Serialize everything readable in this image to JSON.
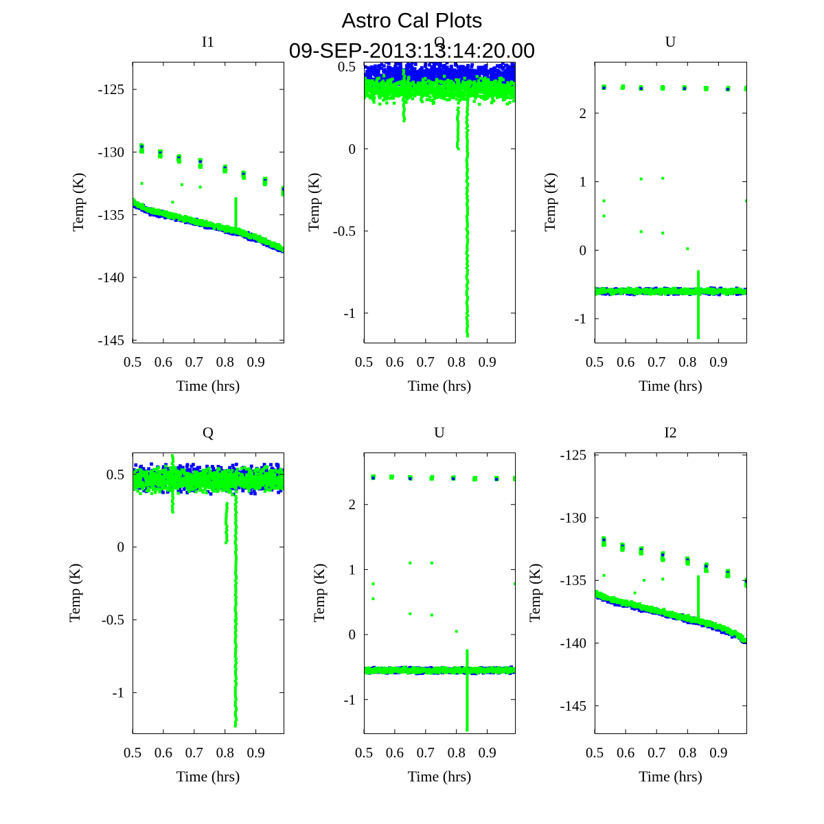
{
  "figure": {
    "title_line1": "Astro Cal Plots",
    "title_line2": "09-SEP-2013:13:14:20.00"
  },
  "colors": {
    "series_a": "#0000ff",
    "series_b": "#00ff00"
  },
  "chart_data": [
    {
      "type": "scatter",
      "title": "I1",
      "xlabel": "Time (hrs)",
      "ylabel": "Temp (K)",
      "xlim": [
        0.5,
        0.99
      ],
      "ylim": [
        -145.2,
        -122.8
      ],
      "xticks": [
        0.5,
        0.6,
        0.7,
        0.8,
        0.9
      ],
      "xtick_labels": [
        "0.5",
        "0.6",
        "0.7",
        "0.8",
        "0.9"
      ],
      "yticks": [
        -125,
        -130,
        -135,
        -140,
        -145
      ],
      "ytick_labels": [
        "-125",
        "-130",
        "-135",
        "-140",
        "-145"
      ],
      "series": [
        {
          "color": "#0000ff",
          "x": [
            0.5,
            0.55,
            0.6,
            0.65,
            0.7,
            0.75,
            0.8,
            0.85,
            0.9,
            0.95,
            0.99
          ],
          "y": [
            -134.1,
            -134.7,
            -135.0,
            -135.3,
            -135.6,
            -135.9,
            -136.2,
            -136.5,
            -136.9,
            -137.4,
            -137.9
          ]
        },
        {
          "color": "#00ff00",
          "x": [
            0.5,
            0.55,
            0.6,
            0.65,
            0.7,
            0.75,
            0.8,
            0.85,
            0.9,
            0.95,
            0.99
          ],
          "y": [
            -134.0,
            -134.6,
            -134.9,
            -135.2,
            -135.5,
            -135.8,
            -136.1,
            -136.4,
            -136.8,
            -137.3,
            -137.8
          ]
        },
        {
          "color": "#00ff00",
          "x": [
            0.53,
            0.53,
            0.59,
            0.59,
            0.65,
            0.65,
            0.72,
            0.72,
            0.8,
            0.8,
            0.86,
            0.86,
            0.93,
            0.93,
            0.99,
            0.99
          ],
          "y": [
            -129.5,
            -129.9,
            -130.0,
            -130.3,
            -130.4,
            -130.7,
            -130.7,
            -131.1,
            -131.2,
            -131.5,
            -131.7,
            -132.0,
            -132.2,
            -132.5,
            -132.9,
            -133.3
          ]
        },
        {
          "color": "#00ff00",
          "x": [
            0.53,
            0.63,
            0.66,
            0.72,
            0.835
          ],
          "y": [
            -132.5,
            -134.0,
            -132.6,
            -132.8,
            -133.9
          ]
        }
      ]
    },
    {
      "type": "scatter",
      "title": "Q",
      "xlabel": "Time (hrs)",
      "ylabel": "Temp (K)",
      "xlim": [
        0.5,
        0.99
      ],
      "ylim": [
        -1.18,
        0.53
      ],
      "xticks": [
        0.5,
        0.6,
        0.7,
        0.8,
        0.9
      ],
      "xtick_labels": [
        "0.5",
        "0.6",
        "0.7",
        "0.8",
        "0.9"
      ],
      "yticks": [
        0.5,
        0,
        -0.5,
        -1
      ],
      "ytick_labels": [
        "0.5",
        "0",
        "-0.5",
        "-1"
      ],
      "series": [
        {
          "color": "#0000ff",
          "x": [
            0.5,
            0.6,
            0.7,
            0.8,
            0.9,
            0.99
          ],
          "y": [
            0.44,
            0.44,
            0.44,
            0.44,
            0.44,
            0.44
          ]
        },
        {
          "color": "#00ff00",
          "x": [
            0.5,
            0.6,
            0.7,
            0.8,
            0.9,
            0.99
          ],
          "y": [
            0.36,
            0.36,
            0.36,
            0.36,
            0.36,
            0.36
          ]
        },
        {
          "color": "#00ff00",
          "x": [
            0.63,
            0.63,
            0.805,
            0.805,
            0.835,
            0.835,
            0.835
          ],
          "y": [
            0.48,
            0.17,
            0.25,
            0.0,
            0.3,
            -0.5,
            -1.14
          ]
        }
      ]
    },
    {
      "type": "scatter",
      "title": "U",
      "xlabel": "Time (hrs)",
      "ylabel": "Temp (K)",
      "xlim": [
        0.5,
        0.99
      ],
      "ylim": [
        -1.35,
        2.75
      ],
      "xticks": [
        0.5,
        0.6,
        0.7,
        0.8,
        0.9
      ],
      "xtick_labels": [
        "0.5",
        "0.6",
        "0.7",
        "0.8",
        "0.9"
      ],
      "yticks": [
        2,
        1,
        0,
        -1
      ],
      "ytick_labels": [
        "2",
        "1",
        "0",
        "-1"
      ],
      "series": [
        {
          "color": "#0000ff",
          "x": [
            0.5,
            0.6,
            0.7,
            0.8,
            0.9,
            0.99
          ],
          "y": [
            -0.6,
            -0.6,
            -0.6,
            -0.6,
            -0.6,
            -0.6
          ]
        },
        {
          "color": "#00ff00",
          "x": [
            0.5,
            0.6,
            0.7,
            0.8,
            0.9,
            0.99
          ],
          "y": [
            -0.6,
            -0.6,
            -0.6,
            -0.6,
            -0.6,
            -0.6
          ]
        },
        {
          "color": "#00ff00",
          "x": [
            0.53,
            0.59,
            0.65,
            0.72,
            0.79,
            0.86,
            0.93,
            0.99
          ],
          "y": [
            2.38,
            2.38,
            2.37,
            2.37,
            2.37,
            2.36,
            2.36,
            2.36
          ]
        },
        {
          "color": "#00ff00",
          "x": [
            0.53,
            0.53,
            0.65,
            0.65,
            0.72,
            0.72,
            0.8,
            0.835,
            0.99
          ],
          "y": [
            0.72,
            0.5,
            1.04,
            0.27,
            1.05,
            0.25,
            0.02,
            -1.28,
            0.72
          ]
        }
      ]
    },
    {
      "type": "scatter",
      "title": "Q",
      "xlabel": "Time (hrs)",
      "ylabel": "Temp (K)",
      "xlim": [
        0.5,
        0.99
      ],
      "ylim": [
        -1.28,
        0.65
      ],
      "xticks": [
        0.5,
        0.6,
        0.7,
        0.8,
        0.9
      ],
      "xtick_labels": [
        "0.5",
        "0.6",
        "0.7",
        "0.8",
        "0.9"
      ],
      "yticks": [
        0.5,
        0,
        -0.5,
        -1
      ],
      "ytick_labels": [
        "0.5",
        "0",
        "-0.5",
        "-1"
      ],
      "series": [
        {
          "color": "#0000ff",
          "x": [
            0.5,
            0.6,
            0.7,
            0.8,
            0.9,
            0.99
          ],
          "y": [
            0.47,
            0.47,
            0.47,
            0.47,
            0.47,
            0.47
          ]
        },
        {
          "color": "#00ff00",
          "x": [
            0.5,
            0.6,
            0.7,
            0.8,
            0.9,
            0.99
          ],
          "y": [
            0.46,
            0.46,
            0.46,
            0.46,
            0.46,
            0.46
          ]
        },
        {
          "color": "#00ff00",
          "x": [
            0.63,
            0.63,
            0.805,
            0.805,
            0.835,
            0.835,
            0.835
          ],
          "y": [
            0.63,
            0.24,
            0.3,
            0.03,
            0.35,
            -0.5,
            -1.23
          ]
        }
      ]
    },
    {
      "type": "scatter",
      "title": "U",
      "xlabel": "Time (hrs)",
      "ylabel": "Temp (K)",
      "xlim": [
        0.5,
        0.99
      ],
      "ylim": [
        -1.52,
        2.8
      ],
      "xticks": [
        0.5,
        0.6,
        0.7,
        0.8,
        0.9
      ],
      "xtick_labels": [
        "0.5",
        "0.6",
        "0.7",
        "0.8",
        "0.9"
      ],
      "yticks": [
        2,
        1,
        0,
        -1
      ],
      "ytick_labels": [
        "2",
        "1",
        "0",
        "-1"
      ],
      "series": [
        {
          "color": "#0000ff",
          "x": [
            0.5,
            0.6,
            0.7,
            0.8,
            0.9,
            0.99
          ],
          "y": [
            -0.55,
            -0.55,
            -0.55,
            -0.55,
            -0.55,
            -0.55
          ]
        },
        {
          "color": "#00ff00",
          "x": [
            0.5,
            0.6,
            0.7,
            0.8,
            0.9,
            0.99
          ],
          "y": [
            -0.55,
            -0.55,
            -0.55,
            -0.55,
            -0.55,
            -0.55
          ]
        },
        {
          "color": "#00ff00",
          "x": [
            0.53,
            0.59,
            0.65,
            0.72,
            0.79,
            0.86,
            0.93,
            0.99
          ],
          "y": [
            2.42,
            2.42,
            2.41,
            2.41,
            2.41,
            2.4,
            2.4,
            2.4
          ]
        },
        {
          "color": "#00ff00",
          "x": [
            0.53,
            0.53,
            0.65,
            0.65,
            0.72,
            0.72,
            0.8,
            0.835,
            0.99
          ],
          "y": [
            0.78,
            0.55,
            1.1,
            0.32,
            1.1,
            0.3,
            0.05,
            -1.47,
            0.78
          ]
        }
      ]
    },
    {
      "type": "scatter",
      "title": "I2",
      "xlabel": "Time (hrs)",
      "ylabel": "Temp (K)",
      "xlim": [
        0.5,
        0.99
      ],
      "ylim": [
        -147.2,
        -124.8
      ],
      "xticks": [
        0.5,
        0.6,
        0.7,
        0.8,
        0.9
      ],
      "xtick_labels": [
        "0.5",
        "0.6",
        "0.7",
        "0.8",
        "0.9"
      ],
      "yticks": [
        -125,
        -130,
        -135,
        -140,
        -145
      ],
      "ytick_labels": [
        "-125",
        "-130",
        "-135",
        "-140",
        "-145"
      ],
      "series": [
        {
          "color": "#0000ff",
          "x": [
            0.5,
            0.55,
            0.6,
            0.65,
            0.7,
            0.75,
            0.8,
            0.85,
            0.9,
            0.95,
            0.99
          ],
          "y": [
            -136.1,
            -136.6,
            -136.9,
            -137.2,
            -137.5,
            -137.8,
            -138.1,
            -138.4,
            -138.8,
            -139.3,
            -139.9
          ]
        },
        {
          "color": "#00ff00",
          "x": [
            0.5,
            0.55,
            0.6,
            0.65,
            0.7,
            0.75,
            0.8,
            0.85,
            0.9,
            0.95,
            0.99
          ],
          "y": [
            -136.0,
            -136.5,
            -136.8,
            -137.1,
            -137.4,
            -137.7,
            -138.0,
            -138.3,
            -138.7,
            -139.2,
            -139.8
          ]
        },
        {
          "color": "#00ff00",
          "x": [
            0.53,
            0.53,
            0.59,
            0.59,
            0.65,
            0.65,
            0.72,
            0.72,
            0.8,
            0.8,
            0.86,
            0.86,
            0.93,
            0.93,
            0.99,
            0.99
          ],
          "y": [
            -131.7,
            -132.1,
            -132.2,
            -132.5,
            -132.5,
            -132.8,
            -132.9,
            -133.3,
            -133.3,
            -133.6,
            -133.8,
            -134.2,
            -134.3,
            -134.6,
            -135.0,
            -135.4
          ]
        },
        {
          "color": "#00ff00",
          "x": [
            0.53,
            0.63,
            0.66,
            0.72,
            0.835
          ],
          "y": [
            -134.6,
            -136.0,
            -135.0,
            -134.9,
            -134.9
          ]
        }
      ]
    }
  ]
}
